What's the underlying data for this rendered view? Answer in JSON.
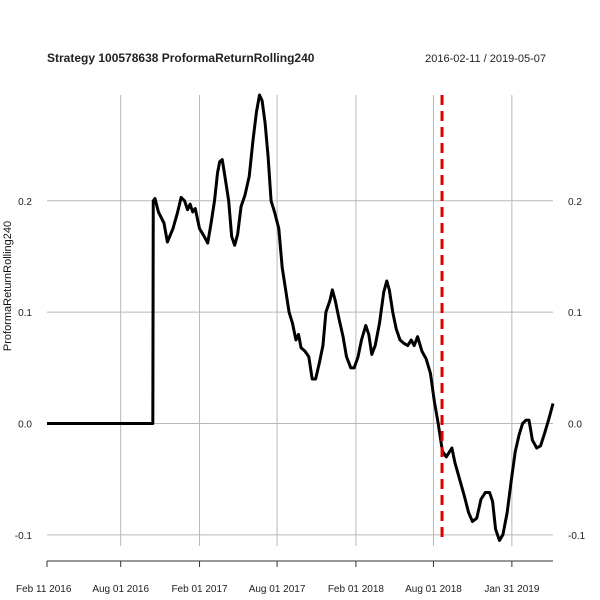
{
  "chart_data": {
    "type": "line",
    "title": "Strategy 100578638 ProformaReturnRolling240",
    "date_range": "2016-02-11 / 2019-05-07",
    "ylabel": "ProformaReturnRolling240",
    "xlabel": "",
    "x_ticks": [
      {
        "label": "Feb 11 2016",
        "date": "2016-02-11"
      },
      {
        "label": "Aug 01 2016",
        "date": "2016-08-01"
      },
      {
        "label": "Feb 01 2017",
        "date": "2017-02-01"
      },
      {
        "label": "Aug 01 2017",
        "date": "2017-08-01"
      },
      {
        "label": "Feb 01 2018",
        "date": "2018-02-01"
      },
      {
        "label": "Aug 01 2018",
        "date": "2018-08-01"
      },
      {
        "label": "Jan 31 2019",
        "date": "2019-01-31"
      }
    ],
    "y_ticks": [
      "0.2",
      "0.1",
      "0.0",
      "-0.1"
    ],
    "y_tick_values": [
      0.2,
      0.1,
      0.0,
      -0.1
    ],
    "ylim": [
      -0.11,
      0.295
    ],
    "xlim": [
      "2016-02-11",
      "2019-05-07"
    ],
    "grid": true,
    "event_line": {
      "date": "2018-08-21",
      "color": "#e00000",
      "style": "dashed"
    },
    "series": [
      {
        "color": "#000000",
        "points": [
          [
            "2016-02-11",
            0.0
          ],
          [
            "2016-10-15",
            0.0
          ],
          [
            "2016-10-16",
            0.2
          ],
          [
            "2016-10-20",
            0.202
          ],
          [
            "2016-10-28",
            0.19
          ],
          [
            "2016-11-10",
            0.18
          ],
          [
            "2016-11-18",
            0.163
          ],
          [
            "2016-12-01",
            0.175
          ],
          [
            "2016-12-12",
            0.19
          ],
          [
            "2016-12-20",
            0.203
          ],
          [
            "2016-12-28",
            0.2
          ],
          [
            "2017-01-04",
            0.192
          ],
          [
            "2017-01-10",
            0.197
          ],
          [
            "2017-01-16",
            0.19
          ],
          [
            "2017-01-22",
            0.193
          ],
          [
            "2017-02-01",
            0.175
          ],
          [
            "2017-02-12",
            0.168
          ],
          [
            "2017-02-20",
            0.162
          ],
          [
            "2017-02-28",
            0.18
          ],
          [
            "2017-03-08",
            0.2
          ],
          [
            "2017-03-15",
            0.225
          ],
          [
            "2017-03-20",
            0.235
          ],
          [
            "2017-03-26",
            0.237
          ],
          [
            "2017-04-02",
            0.22
          ],
          [
            "2017-04-10",
            0.2
          ],
          [
            "2017-04-17",
            0.168
          ],
          [
            "2017-04-24",
            0.16
          ],
          [
            "2017-05-01",
            0.17
          ],
          [
            "2017-05-09",
            0.195
          ],
          [
            "2017-05-18",
            0.205
          ],
          [
            "2017-05-28",
            0.222
          ],
          [
            "2017-06-06",
            0.255
          ],
          [
            "2017-06-14",
            0.28
          ],
          [
            "2017-06-21",
            0.295
          ],
          [
            "2017-06-27",
            0.29
          ],
          [
            "2017-07-04",
            0.27
          ],
          [
            "2017-07-11",
            0.24
          ],
          [
            "2017-07-18",
            0.2
          ],
          [
            "2017-07-26",
            0.19
          ],
          [
            "2017-08-05",
            0.175
          ],
          [
            "2017-08-13",
            0.14
          ],
          [
            "2017-08-21",
            0.12
          ],
          [
            "2017-08-29",
            0.1
          ],
          [
            "2017-09-06",
            0.09
          ],
          [
            "2017-09-14",
            0.075
          ],
          [
            "2017-09-20",
            0.08
          ],
          [
            "2017-09-26",
            0.068
          ],
          [
            "2017-10-05",
            0.065
          ],
          [
            "2017-10-14",
            0.06
          ],
          [
            "2017-10-22",
            0.04
          ],
          [
            "2017-10-30",
            0.04
          ],
          [
            "2017-11-08",
            0.055
          ],
          [
            "2017-11-16",
            0.07
          ],
          [
            "2017-11-23",
            0.1
          ],
          [
            "2017-12-02",
            0.11
          ],
          [
            "2017-12-08",
            0.12
          ],
          [
            "2017-12-15",
            0.11
          ],
          [
            "2017-12-23",
            0.095
          ],
          [
            "2018-01-02",
            0.078
          ],
          [
            "2018-01-10",
            0.06
          ],
          [
            "2018-01-20",
            0.05
          ],
          [
            "2018-01-28",
            0.05
          ],
          [
            "2018-02-06",
            0.06
          ],
          [
            "2018-02-14",
            0.075
          ],
          [
            "2018-02-24",
            0.088
          ],
          [
            "2018-03-03",
            0.08
          ],
          [
            "2018-03-10",
            0.062
          ],
          [
            "2018-03-18",
            0.07
          ],
          [
            "2018-03-28",
            0.09
          ],
          [
            "2018-04-07",
            0.118
          ],
          [
            "2018-04-14",
            0.128
          ],
          [
            "2018-04-20",
            0.12
          ],
          [
            "2018-04-28",
            0.1
          ],
          [
            "2018-05-06",
            0.085
          ],
          [
            "2018-05-15",
            0.075
          ],
          [
            "2018-05-24",
            0.072
          ],
          [
            "2018-06-02",
            0.07
          ],
          [
            "2018-06-10",
            0.075
          ],
          [
            "2018-06-17",
            0.07
          ],
          [
            "2018-06-25",
            0.078
          ],
          [
            "2018-07-05",
            0.065
          ],
          [
            "2018-07-15",
            0.058
          ],
          [
            "2018-07-25",
            0.045
          ],
          [
            "2018-08-03",
            0.02
          ],
          [
            "2018-08-12",
            0.0
          ],
          [
            "2018-08-22",
            -0.025
          ],
          [
            "2018-08-31",
            -0.03
          ],
          [
            "2018-09-08",
            -0.025
          ],
          [
            "2018-09-13",
            -0.022
          ],
          [
            "2018-09-20",
            -0.035
          ],
          [
            "2018-10-01",
            -0.05
          ],
          [
            "2018-10-12",
            -0.065
          ],
          [
            "2018-10-22",
            -0.08
          ],
          [
            "2018-10-31",
            -0.088
          ],
          [
            "2018-11-10",
            -0.085
          ],
          [
            "2018-11-20",
            -0.068
          ],
          [
            "2018-11-30",
            -0.062
          ],
          [
            "2018-12-10",
            -0.062
          ],
          [
            "2018-12-17",
            -0.07
          ],
          [
            "2018-12-24",
            -0.095
          ],
          [
            "2019-01-02",
            -0.105
          ],
          [
            "2019-01-10",
            -0.1
          ],
          [
            "2019-01-20",
            -0.08
          ],
          [
            "2019-01-30",
            -0.05
          ],
          [
            "2019-02-08",
            -0.025
          ],
          [
            "2019-02-17",
            -0.01
          ],
          [
            "2019-02-25",
            0.0
          ],
          [
            "2019-03-05",
            0.003
          ],
          [
            "2019-03-12",
            0.003
          ],
          [
            "2019-03-20",
            -0.015
          ],
          [
            "2019-03-30",
            -0.022
          ],
          [
            "2019-04-08",
            -0.02
          ],
          [
            "2019-04-18",
            -0.008
          ],
          [
            "2019-04-28",
            0.005
          ],
          [
            "2019-05-07",
            0.018
          ]
        ]
      }
    ]
  }
}
